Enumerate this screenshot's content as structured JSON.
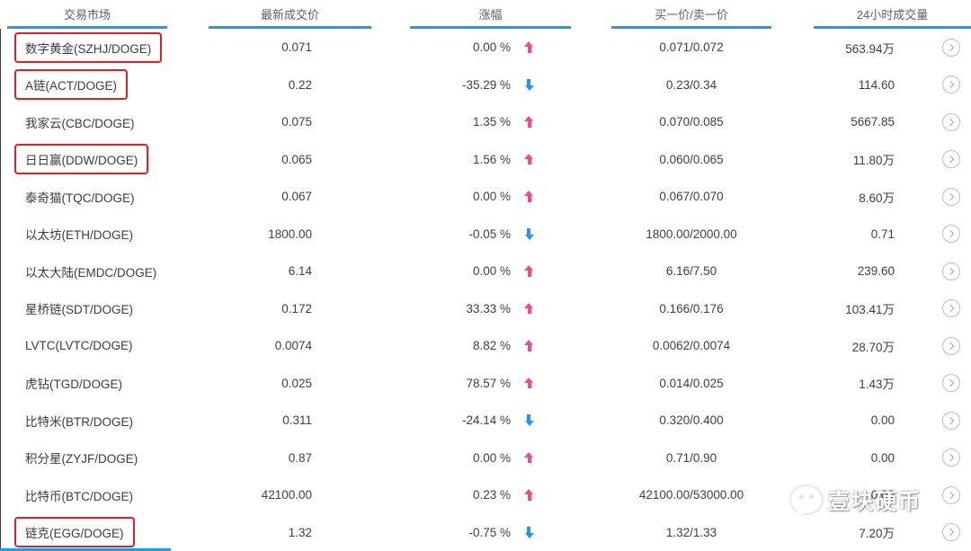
{
  "header": {
    "columns": [
      {
        "label": "交易市场"
      },
      {
        "label": "最新成交价"
      },
      {
        "label": "涨幅"
      },
      {
        "label": "买一价/卖一价"
      },
      {
        "label": "24小时成交量"
      }
    ]
  },
  "rows": [
    {
      "market": "数字黄金(SZHJ/DOGE)",
      "price": "0.071",
      "change": "0.00 %",
      "direction": "up",
      "bid_ask": "0.071/0.072",
      "volume": "563.94万",
      "highlighted": true
    },
    {
      "market": "A链(ACT/DOGE)",
      "price": "0.22",
      "change": "-35.29 %",
      "direction": "down",
      "bid_ask": "0.23/0.34",
      "volume": "114.60",
      "highlighted": true
    },
    {
      "market": "我家云(CBC/DOGE)",
      "price": "0.075",
      "change": "1.35 %",
      "direction": "up",
      "bid_ask": "0.070/0.085",
      "volume": "5667.85",
      "highlighted": false
    },
    {
      "market": "日日赢(DDW/DOGE)",
      "price": "0.065",
      "change": "1.56 %",
      "direction": "up",
      "bid_ask": "0.060/0.065",
      "volume": "11.80万",
      "highlighted": true
    },
    {
      "market": "泰奇猫(TQC/DOGE)",
      "price": "0.067",
      "change": "0.00 %",
      "direction": "up",
      "bid_ask": "0.067/0.070",
      "volume": "8.60万",
      "highlighted": false
    },
    {
      "market": "以太坊(ETH/DOGE)",
      "price": "1800.00",
      "change": "-0.05 %",
      "direction": "down",
      "bid_ask": "1800.00/2000.00",
      "volume": "0.71",
      "highlighted": false
    },
    {
      "market": "以太大陆(EMDC/DOGE)",
      "price": "6.14",
      "change": "0.00 %",
      "direction": "up",
      "bid_ask": "6.16/7.50",
      "volume": "239.60",
      "highlighted": false
    },
    {
      "market": "星桥链(SDT/DOGE)",
      "price": "0.172",
      "change": "33.33 %",
      "direction": "up",
      "bid_ask": "0.166/0.176",
      "volume": "103.41万",
      "highlighted": false
    },
    {
      "market": "LVTC(LVTC/DOGE)",
      "price": "0.0074",
      "change": "8.82 %",
      "direction": "up",
      "bid_ask": "0.0062/0.0074",
      "volume": "28.70万",
      "highlighted": false
    },
    {
      "market": "虎钻(TGD/DOGE)",
      "price": "0.025",
      "change": "78.57 %",
      "direction": "up",
      "bid_ask": "0.014/0.025",
      "volume": "1.43万",
      "highlighted": false
    },
    {
      "market": "比特米(BTR/DOGE)",
      "price": "0.311",
      "change": "-24.14 %",
      "direction": "down",
      "bid_ask": "0.320/0.400",
      "volume": "0.00",
      "highlighted": false
    },
    {
      "market": "积分星(ZYJF/DOGE)",
      "price": "0.87",
      "change": "0.00 %",
      "direction": "up",
      "bid_ask": "0.71/0.90",
      "volume": "0.00",
      "highlighted": false
    },
    {
      "market": "比特币(BTC/DOGE)",
      "price": "42100.00",
      "change": "0.23 %",
      "direction": "up",
      "bid_ask": "42100.00/53000.00",
      "volume": "0.00",
      "highlighted": false
    },
    {
      "market": "链克(EGG/DOGE)",
      "price": "1.32",
      "change": "-0.75 %",
      "direction": "down",
      "bid_ask": "1.32/1.33",
      "volume": "7.20万",
      "highlighted": true
    }
  ],
  "watermark": {
    "text": "壹块硬币"
  },
  "colors": {
    "up_arrow": "#f0489b",
    "down_arrow": "#2196f3",
    "header_underline": "#1c9fe2",
    "highlight_border": "#de2121",
    "text": "#404040"
  }
}
